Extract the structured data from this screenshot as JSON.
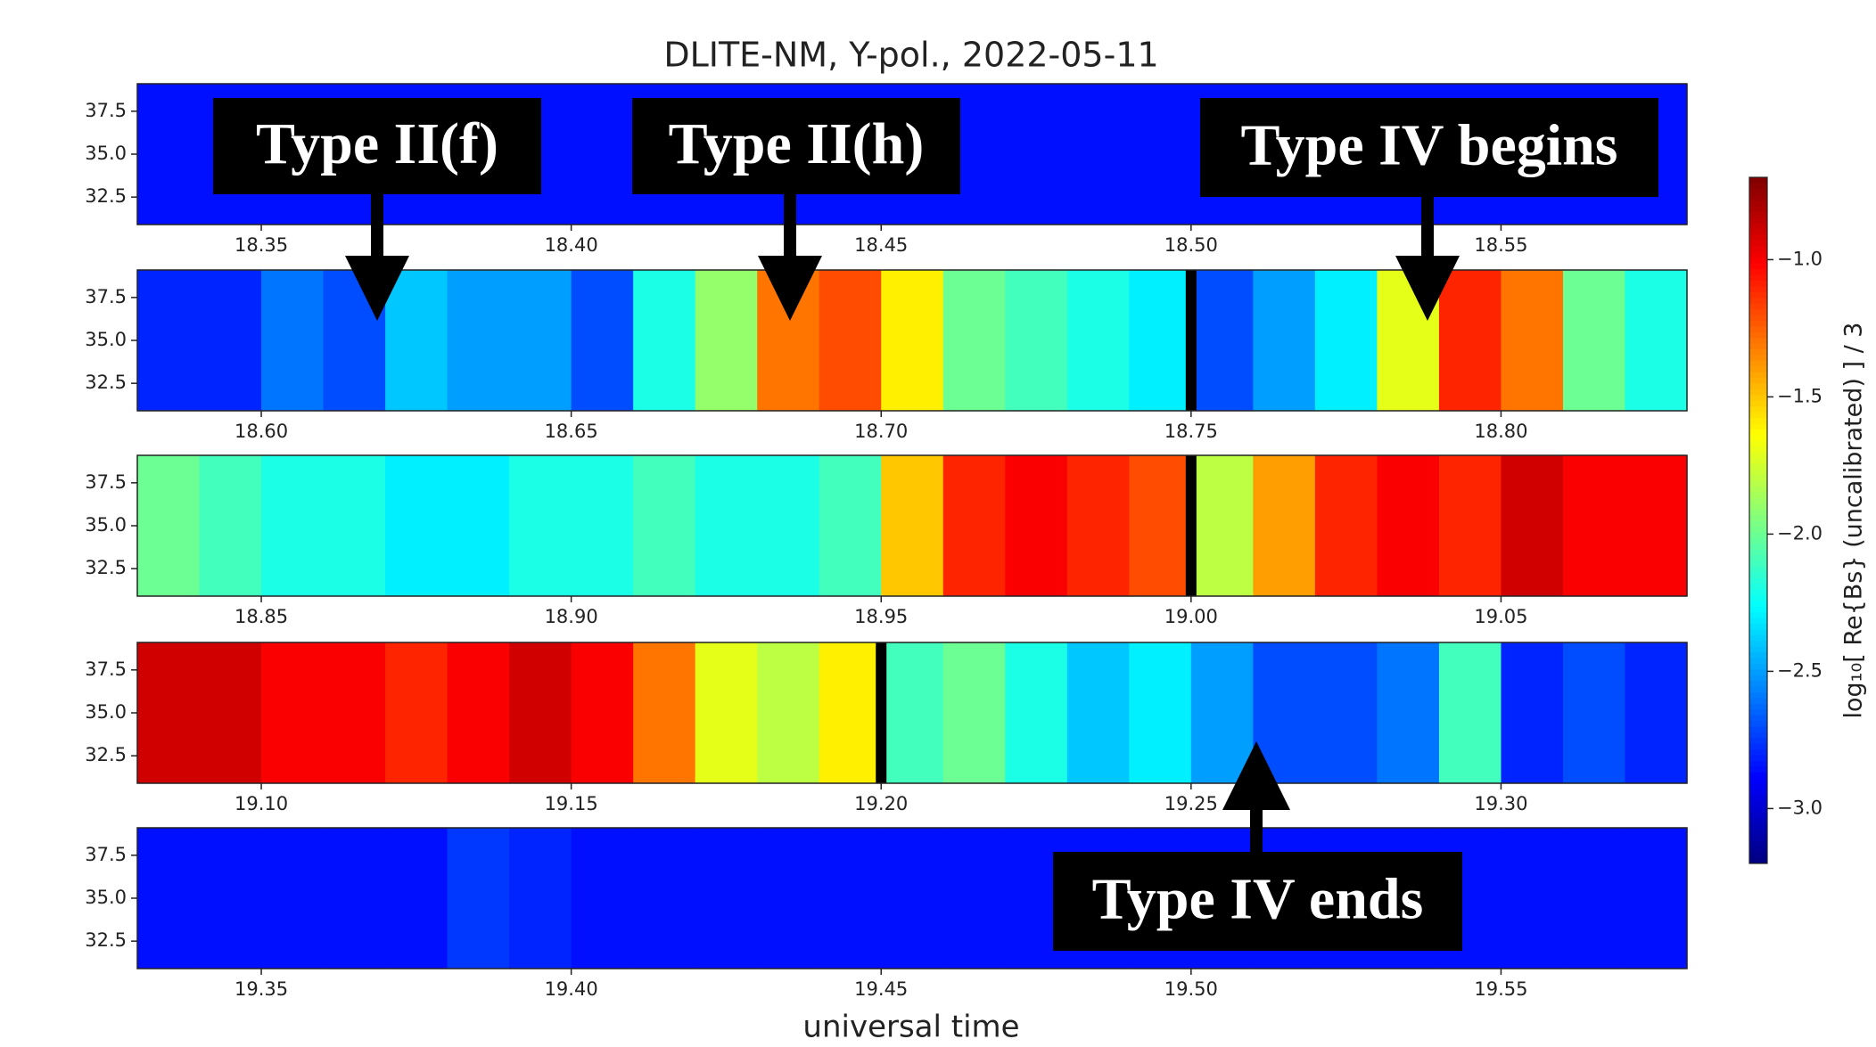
{
  "chart_data": {
    "type": "heatmap",
    "title": "DLITE-NM, Y-pol., 2022-05-11",
    "xlabel": "universal time",
    "colorbar_label": "log₁₀[ Re{Bs} (uncalibrated) ] / 3",
    "clim": [
      -3.2,
      -0.7
    ],
    "colorbar_ticks": [
      {
        "value": -1.0,
        "label": "−1.0"
      },
      {
        "value": -1.5,
        "label": "−1.5"
      },
      {
        "value": -2.0,
        "label": "−2.0"
      },
      {
        "value": -2.5,
        "label": "−2.5"
      },
      {
        "value": -3.0,
        "label": "−3.0"
      }
    ],
    "colormap": "jet",
    "panels": [
      {
        "xlim": [
          18.33,
          18.58
        ],
        "ylim": [
          30.9,
          39.1
        ],
        "xticks": [
          18.35,
          {
            "value": 18.4,
            "label": "18.40"
          },
          18.45,
          {
            "value": 18.5,
            "label": "18.50"
          },
          18.55
        ],
        "yticks": [
          37.5,
          {
            "value": 35,
            "label": "35.0"
          },
          32.5
        ],
        "markers": [],
        "values": [
          -2.85,
          -2.85,
          -2.85,
          -2.85,
          -2.85,
          -2.85,
          -2.85,
          -2.85,
          -2.85,
          -2.85,
          -2.85,
          -2.85,
          -2.85,
          -2.85,
          -2.85,
          -2.85,
          -2.85,
          -2.85,
          -2.85,
          -2.85,
          -2.85,
          -2.85,
          -2.85,
          -2.85,
          -2.85
        ]
      },
      {
        "xlim": [
          18.58,
          18.83
        ],
        "ylim": [
          30.9,
          39.1
        ],
        "xticks": [
          {
            "value": 18.6,
            "label": "18.60"
          },
          18.65,
          {
            "value": 18.7,
            "label": "18.70"
          },
          18.75,
          {
            "value": 18.8,
            "label": "18.80"
          }
        ],
        "yticks": [
          37.5,
          {
            "value": 35,
            "label": "35.0"
          },
          32.5
        ],
        "markers": [
          18.75
        ],
        "values": [
          -2.8,
          -2.8,
          -2.6,
          -2.7,
          -2.4,
          -2.5,
          -2.5,
          -2.7,
          -2.2,
          -1.9,
          -1.3,
          -1.2,
          -1.6,
          -2.0,
          -2.1,
          -2.2,
          -2.3,
          -2.7,
          -2.5,
          -2.3,
          -1.7,
          -1.1,
          -1.3,
          -2.0,
          -2.2
        ]
      },
      {
        "xlim": [
          18.83,
          19.08
        ],
        "ylim": [
          30.9,
          39.1
        ],
        "xticks": [
          18.85,
          {
            "value": 18.9,
            "label": "18.90"
          },
          18.95,
          {
            "value": 19,
            "label": "19.00"
          },
          19.05
        ],
        "yticks": [
          37.5,
          {
            "value": 35,
            "label": "35.0"
          },
          32.5
        ],
        "markers": [
          19
        ],
        "values": [
          -2.0,
          -2.1,
          -2.2,
          -2.2,
          -2.3,
          -2.3,
          -2.2,
          -2.2,
          -2.1,
          -2.2,
          -2.2,
          -2.1,
          -1.5,
          -1.1,
          -1.0,
          -1.1,
          -1.2,
          -1.8,
          -1.4,
          -1.1,
          -1.0,
          -1.1,
          -0.9,
          -1.0,
          -1.0
        ]
      },
      {
        "xlim": [
          19.08,
          19.33
        ],
        "ylim": [
          30.9,
          39.1
        ],
        "xticks": [
          {
            "value": 19.1,
            "label": "19.10"
          },
          19.15,
          {
            "value": 19.2,
            "label": "19.20"
          },
          19.25,
          {
            "value": 19.3,
            "label": "19.30"
          }
        ],
        "yticks": [
          37.5,
          {
            "value": 35,
            "label": "35.0"
          },
          32.5
        ],
        "markers": [
          19.2
        ],
        "values": [
          -0.9,
          -0.9,
          -1.0,
          -1.0,
          -1.1,
          -1.0,
          -0.9,
          -1.0,
          -1.3,
          -1.7,
          -1.8,
          -1.6,
          -2.1,
          -2.0,
          -2.2,
          -2.4,
          -2.3,
          -2.5,
          -2.7,
          -2.7,
          -2.6,
          -2.1,
          -2.8,
          -2.7,
          -2.8
        ]
      },
      {
        "xlim": [
          19.33,
          19.58
        ],
        "ylim": [
          30.9,
          39.1
        ],
        "xticks": [
          19.35,
          {
            "value": 19.4,
            "label": "19.40"
          },
          19.45,
          {
            "value": 19.5,
            "label": "19.50"
          },
          19.55
        ],
        "yticks": [
          37.5,
          {
            "value": 35,
            "label": "35.0"
          },
          32.5
        ],
        "markers": [],
        "values": [
          -2.85,
          -2.85,
          -2.85,
          -2.85,
          -2.85,
          -2.75,
          -2.8,
          -2.85,
          -2.85,
          -2.85,
          -2.85,
          -2.85,
          -2.85,
          -2.85,
          -2.85,
          -2.85,
          -2.85,
          -2.85,
          -2.85,
          -2.85,
          -2.85,
          -2.85,
          -2.85,
          -2.85,
          -2.85
        ]
      }
    ],
    "annotations": [
      {
        "text": "Type II(f)"
      },
      {
        "text": "Type II(h)"
      },
      {
        "text": "Type IV begins"
      },
      {
        "text": "Type IV ends"
      }
    ]
  }
}
